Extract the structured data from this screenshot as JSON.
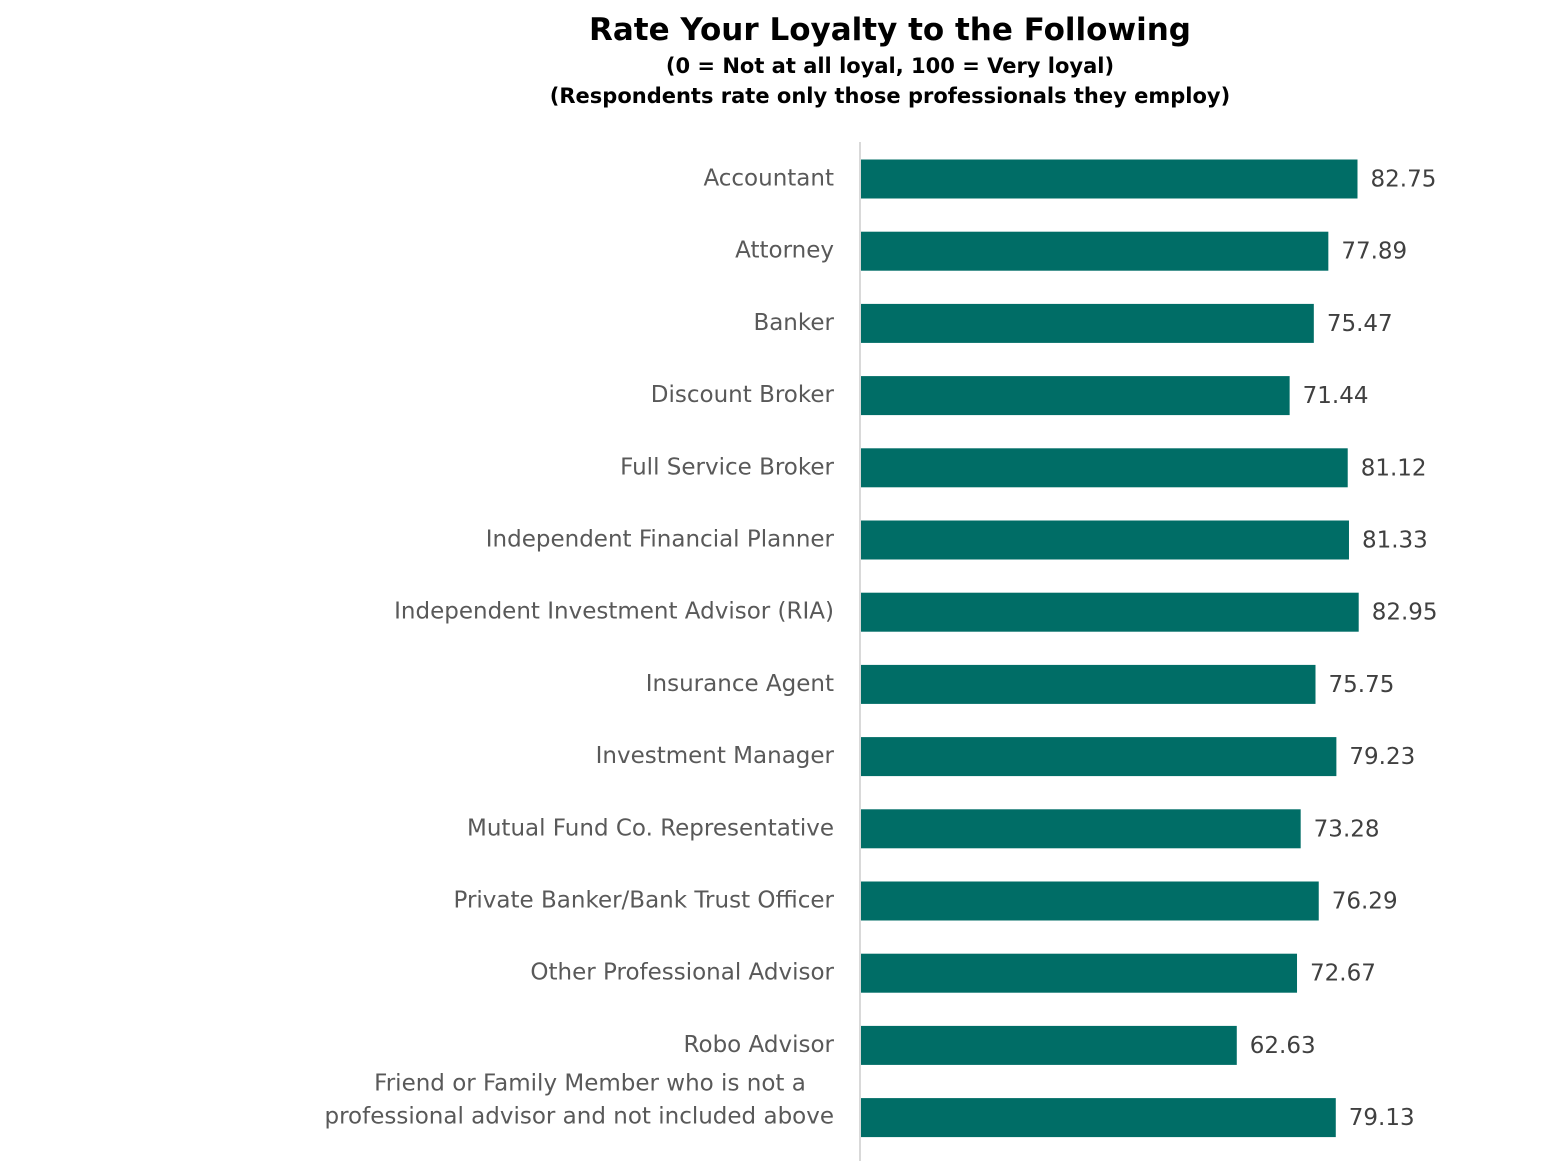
{
  "chart_data": {
    "type": "bar",
    "orientation": "horizontal",
    "title": "Rate Your Loyalty to the Following",
    "subtitle": [
      "(0 = Not at all loyal, 100 = Very loyal)",
      "(Respondents rate only those professionals they employ)"
    ],
    "categories": [
      "Accountant",
      "Attorney",
      "Banker",
      "Discount Broker",
      "Full Service Broker",
      "Independent Financial Planner",
      "Independent Investment Advisor (RIA)",
      "Insurance Agent",
      "Investment Manager",
      "Mutual Fund Co. Representative",
      "Private Banker/Bank Trust Officer",
      "Other Professional Advisor",
      "Robo Advisor",
      "Friend or Family Member who is not a professional advisor and not included above"
    ],
    "category_lines": [
      [
        "Accountant"
      ],
      [
        "Attorney"
      ],
      [
        "Banker"
      ],
      [
        "Discount Broker"
      ],
      [
        "Full Service Broker"
      ],
      [
        "Independent Financial Planner"
      ],
      [
        "Independent Investment Advisor (RIA)"
      ],
      [
        "Insurance Agent"
      ],
      [
        "Investment Manager"
      ],
      [
        "Mutual Fund Co. Representative"
      ],
      [
        "Private Banker/Bank Trust Officer"
      ],
      [
        "Other Professional Advisor"
      ],
      [
        "Robo Advisor"
      ],
      [
        "Friend or Family Member who is not a",
        "professional advisor and not included above"
      ]
    ],
    "values": [
      82.75,
      77.89,
      75.47,
      71.44,
      81.12,
      81.33,
      82.95,
      75.75,
      79.23,
      73.28,
      76.29,
      72.67,
      62.63,
      79.13
    ],
    "value_labels": [
      "82.75",
      "77.89",
      "75.47",
      "71.44",
      "81.12",
      "81.33",
      "82.95",
      "75.75",
      "79.23",
      "73.28",
      "76.29",
      "72.67",
      "62.63",
      "79.13"
    ],
    "xlim": [
      0,
      100
    ],
    "grid": false,
    "legend": "none",
    "colors": {
      "bar": "#006D66",
      "axis": "#D9D9D9",
      "category_text": "#595959",
      "value_text": "#404040"
    }
  }
}
